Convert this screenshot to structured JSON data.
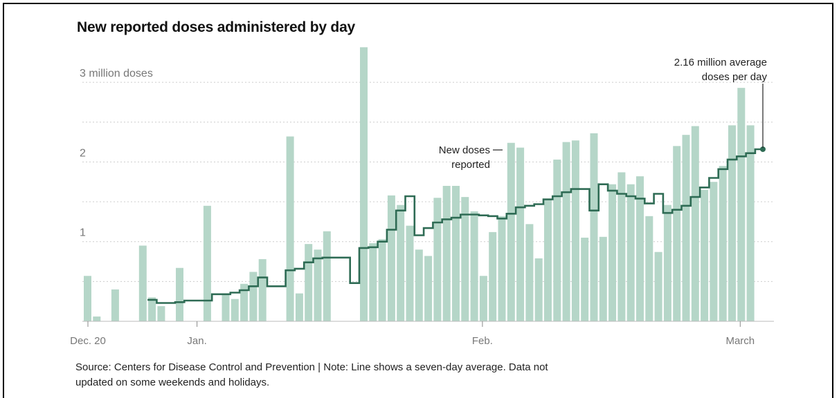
{
  "title": "New reported doses administered by day",
  "source_note": "Source: Centers for Disease Control and Prevention | Note: Line shows a seven-day average. Data not",
  "source_note_line2": "updated on some weekends and holidays.",
  "colors": {
    "bar": "#b5d6c8",
    "line": "#2e6b54",
    "grid": "#cccccc",
    "axis_label": "#777777",
    "text": "#222222"
  },
  "chart_data": {
    "type": "bar",
    "title": "New reported doses administered by day",
    "start_date": "2020-12-20",
    "xlabel": "",
    "ylabel": "",
    "ylim": [
      0,
      3.5
    ],
    "y_ticks": [
      {
        "value": 1,
        "label": "1"
      },
      {
        "value": 2,
        "label": "2"
      },
      {
        "value": 3,
        "label": "3 million doses"
      }
    ],
    "x_ticks": [
      {
        "label": "Dec. 20",
        "date": "2020-12-20"
      },
      {
        "label": "Jan.",
        "date": "2021-01-01"
      },
      {
        "label": "Feb.",
        "date": "2021-02-01"
      },
      {
        "label": "March",
        "date": "2021-03-01"
      }
    ],
    "series": [
      {
        "name": "New doses reported",
        "values": [
          0.57,
          0.06,
          0,
          0.4,
          0,
          0,
          0.95,
          0.3,
          0.19,
          0,
          0.67,
          0,
          0,
          1.45,
          0,
          0.35,
          0.28,
          0.47,
          0.62,
          0.78,
          0,
          0,
          2.32,
          0.35,
          0.97,
          0.9,
          1.13,
          0,
          0,
          0,
          3.44,
          0.98,
          1.03,
          1.58,
          1.46,
          1.2,
          0.9,
          0.82,
          1.55,
          1.7,
          1.7,
          1.56,
          1.38,
          0.57,
          1.12,
          1.32,
          2.24,
          2.18,
          1.22,
          0.79,
          1.52,
          2.03,
          2.25,
          2.27,
          1.05,
          2.36,
          1.06,
          1.72,
          1.87,
          1.72,
          1.82,
          1.32,
          0.87,
          1.46,
          2.2,
          2.34,
          2.45,
          1.65,
          1.75,
          1.95,
          2.46,
          2.93,
          2.46
        ]
      },
      {
        "name": "Seven-day average",
        "start_index": 7,
        "values": [
          0.27,
          0.23,
          0.23,
          0.24,
          0.26,
          0.26,
          0.26,
          0.34,
          0.34,
          0.36,
          0.39,
          0.44,
          0.55,
          0.44,
          0.44,
          0.64,
          0.66,
          0.74,
          0.79,
          0.8,
          0.8,
          0.8,
          0.48,
          0.92,
          0.93,
          1.0,
          1.15,
          1.39,
          1.57,
          1.08,
          1.17,
          1.24,
          1.28,
          1.3,
          1.34,
          1.34,
          1.33,
          1.32,
          1.29,
          1.35,
          1.43,
          1.45,
          1.47,
          1.53,
          1.57,
          1.62,
          1.66,
          1.66,
          1.39,
          1.72,
          1.64,
          1.6,
          1.57,
          1.54,
          1.48,
          1.6,
          1.36,
          1.4,
          1.45,
          1.56,
          1.68,
          1.8,
          1.91,
          2.03,
          2.07,
          2.11,
          2.16
        ]
      }
    ],
    "annotations": [
      {
        "text": "New doses",
        "text2": "reported",
        "series": "bars"
      },
      {
        "text": "2.16 million average",
        "text2": "doses per day",
        "value": 2.16
      }
    ],
    "grid": true
  }
}
